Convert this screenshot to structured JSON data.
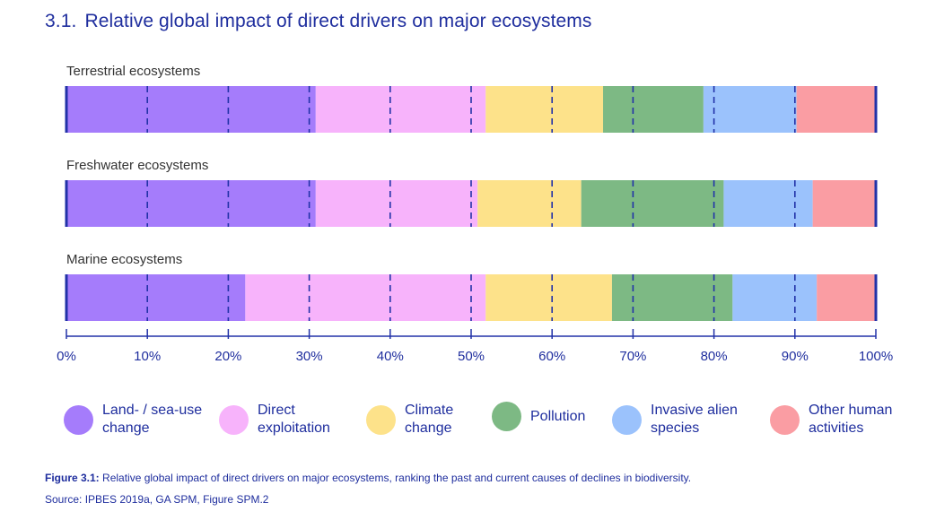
{
  "header": {
    "number": "3.1.",
    "title": "Relative global impact of direct drivers on major ecosystems"
  },
  "chart_data": {
    "type": "bar",
    "orientation": "horizontal",
    "stacked": true,
    "categories": [
      "Terrestrial ecosystems",
      "Freshwater ecosystems",
      "Marine ecosystems"
    ],
    "series": [
      {
        "name": "Land- / sea-use\nchange",
        "color": "#a57cfb",
        "values": [
          30.8,
          30.8,
          22.1
        ]
      },
      {
        "name": "Direct\nexploitation",
        "color": "#f7b3fb",
        "values": [
          21.0,
          20.0,
          29.7
        ]
      },
      {
        "name": "Climate\nchange",
        "color": "#fde28a",
        "values": [
          14.5,
          12.8,
          15.6
        ]
      },
      {
        "name": "Pollution",
        "color": "#7db984",
        "values": [
          12.4,
          17.6,
          14.9
        ]
      },
      {
        "name": "Invasive alien\nspecies",
        "color": "#9bc2fc",
        "values": [
          11.5,
          11.0,
          10.4
        ]
      },
      {
        "name": "Other human\nactivities",
        "color": "#fa9da3",
        "values": [
          9.8,
          7.8,
          7.3
        ]
      }
    ],
    "x_ticks": [
      "0%",
      "10%",
      "20%",
      "30%",
      "40%",
      "50%",
      "60%",
      "70%",
      "80%",
      "90%",
      "100%"
    ],
    "xlim": [
      0,
      100
    ],
    "grid": "dashed vertical",
    "legend_position": "bottom",
    "colors": {
      "axis": "#2232a8",
      "text": "#1f2e9e"
    }
  },
  "caption": {
    "label": "Figure 3.1:",
    "text": " Relative global impact of direct drivers on major ecosystems, ranking the past and current causes of declines in biodiversity."
  },
  "source": "Source: IPBES 2019a, GA SPM, Figure SPM.2"
}
